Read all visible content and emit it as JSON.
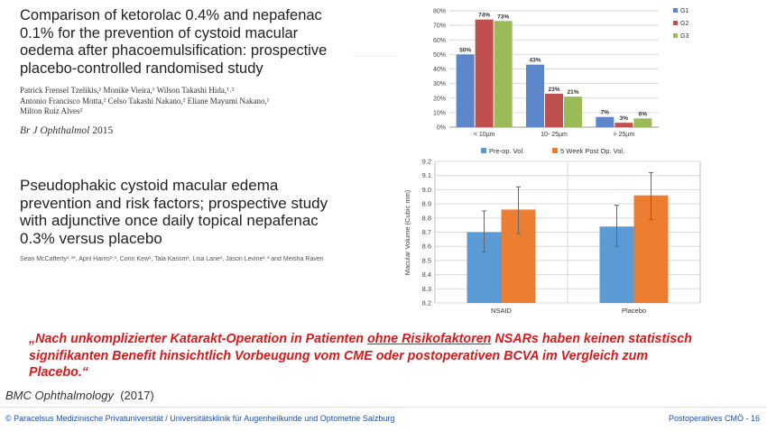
{
  "paper1": {
    "title": "Comparison of ketorolac 0.4% and nepafenac 0.1% for the prevention of cystoid macular oedema after phacoemulsification: prospective placebo-controlled randomised study",
    "authors_line1": "Patrick Frensel Tzelikis,¹ Monike Vieira,¹ Wilson Takashi Hida,¹˒²",
    "authors_line2": "Antonio Francisco Motta,² Celso Takashi Nakano,² Eliane Mayumi Nakano,¹",
    "authors_line3": "Milton Ruiz Alves²",
    "journal": "Br J Ophthalmol",
    "year": "2015"
  },
  "paper2": {
    "title": "Pseudophakic cystoid macular edema prevention and risk factors; prospective study with adjunctive once daily topical nepafenac 0.3% versus placebo",
    "authors": "Sean McCafferty¹˒³*, April Harris²˒³, Corin Kew¹, Tala Kassm¹, Lisa Lane¹, Jason Levine¹˒³ and Meisha Raven"
  },
  "quote": {
    "part1": "„Nach unkomplizierter Katarakt-Operation in Patienten ",
    "underlined": "ohne Risikofaktoren",
    "part2": " NSARs haben keinen statistisch signifikanten Benefit hinsichtlich Vorbeugung vom CME oder postoperativen BCVA im Vergleich zum Placebo.“"
  },
  "source": {
    "journal": "BMC Ophthalmology",
    "year": "(2017)"
  },
  "footer": {
    "left": "© Paracelsus Medizinische Privatuniversität / Universitätsklinik für Augenheilkunde und Optometrie Salzburg",
    "right": "Postoperatives CMÖ - 16"
  },
  "colors": {
    "g1": "#5b86c9",
    "g2": "#c0504d",
    "g3": "#9bbb59",
    "pre": "#5b9bd5",
    "post": "#ed7d31",
    "quote": "#d7191c",
    "footer": "#1f4e9c"
  },
  "chart_data": [
    {
      "type": "bar",
      "categories": [
        "< 10µm",
        "10- 25µm",
        "> 25µm"
      ],
      "series": [
        {
          "name": "G1",
          "values": [
            50,
            43,
            7
          ],
          "labels": [
            "50%",
            "43%",
            "7%"
          ]
        },
        {
          "name": "G2",
          "values": [
            74,
            23,
            3
          ],
          "labels": [
            "74%",
            "23%",
            "3%"
          ]
        },
        {
          "name": "G3",
          "values": [
            73,
            21,
            6
          ],
          "labels": [
            "73%",
            "21%",
            "6%"
          ]
        }
      ],
      "yticks": [
        "0%",
        "10%",
        "20%",
        "30%",
        "40%",
        "50%",
        "60%",
        "70%",
        "80%"
      ],
      "ylim": [
        0,
        80
      ],
      "legend": "right",
      "grid": true
    },
    {
      "type": "bar",
      "categories": [
        "NSAID",
        "Placebo"
      ],
      "series": [
        {
          "name": "Pre-op. Vol.",
          "values": [
            8.7,
            8.74
          ],
          "err_low": [
            8.56,
            8.6
          ],
          "err_high": [
            8.85,
            8.89
          ]
        },
        {
          "name": "5 Week Post Op. Vol.",
          "values": [
            8.86,
            8.96
          ],
          "err_low": [
            8.69,
            8.79
          ],
          "err_high": [
            9.02,
            9.12
          ]
        }
      ],
      "ylabel": "Macular Volume (Cubic mm)",
      "yticks": [
        "8.2",
        "8.3",
        "8.4",
        "8.5",
        "8.6",
        "8.7",
        "8.8",
        "8.9",
        "9.0",
        "9.1",
        "9.2"
      ],
      "ylim": [
        8.2,
        9.2
      ],
      "legend": "top",
      "grid": true
    }
  ]
}
